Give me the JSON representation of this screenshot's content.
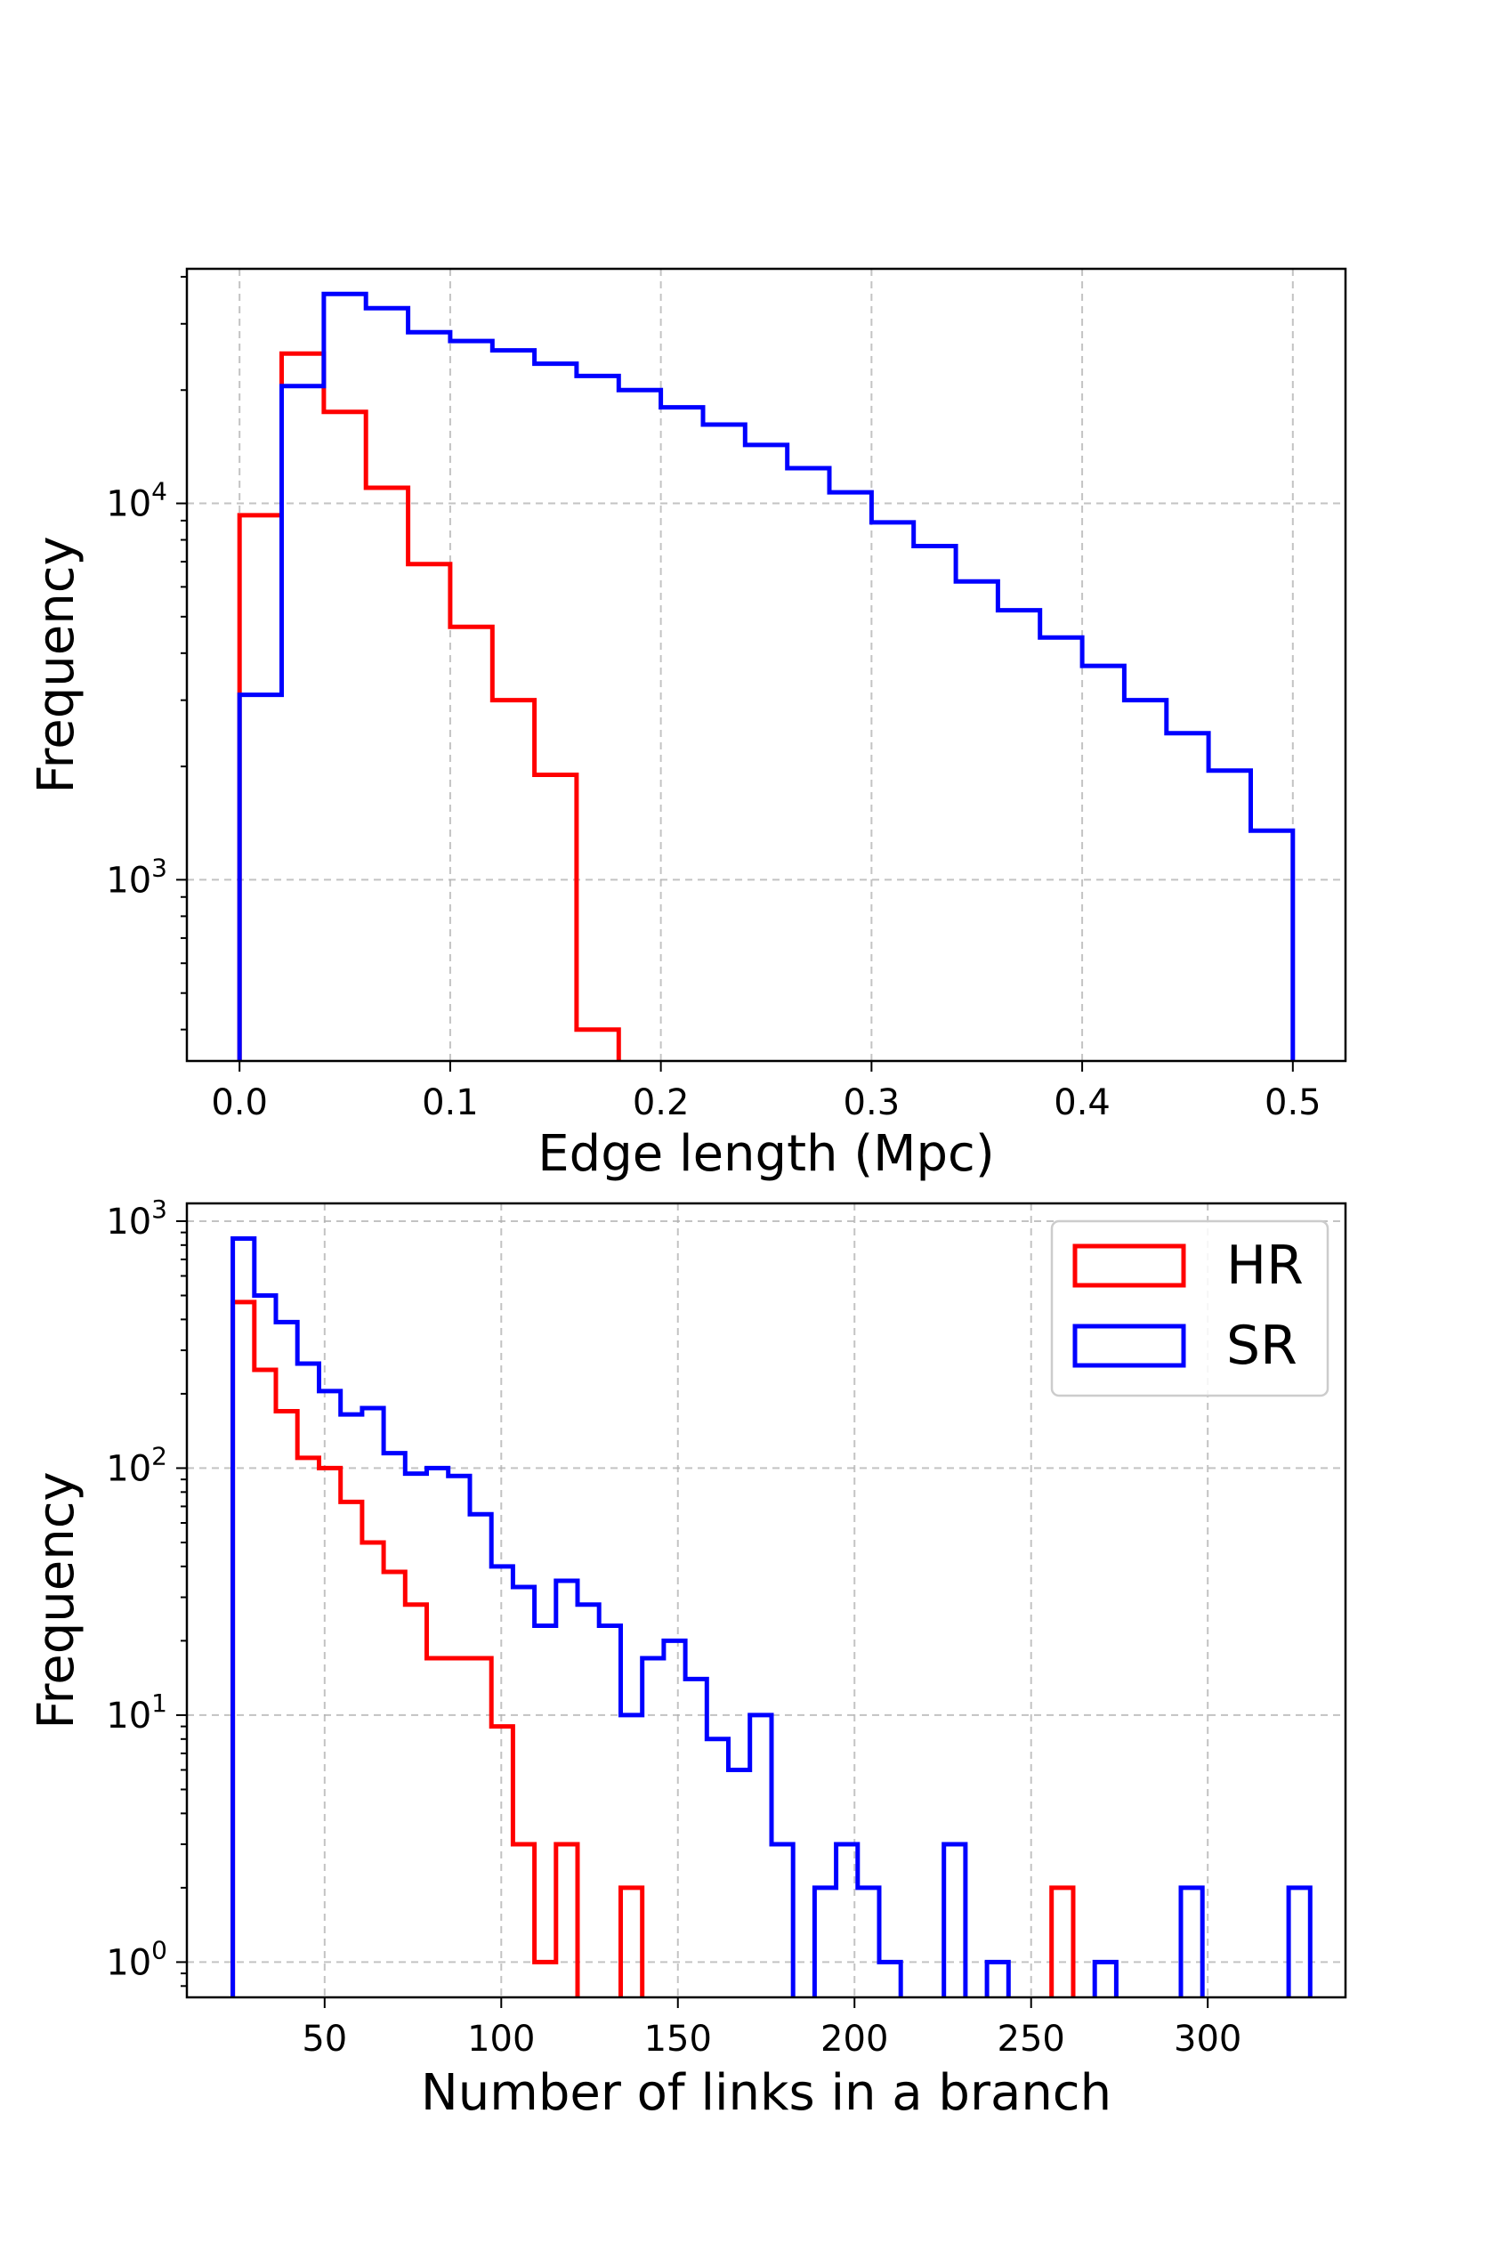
{
  "chart_data": [
    {
      "type": "histogram-step",
      "xlabel": "Edge length (Mpc)",
      "ylabel": "Frequency",
      "yscale": "log",
      "xlim": [
        -0.025,
        0.525
      ],
      "ylim": [
        330,
        42000
      ],
      "x_ticks": [
        0.0,
        0.1,
        0.2,
        0.3,
        0.4,
        0.5
      ],
      "x_tick_labels": [
        "0.0",
        "0.1",
        "0.2",
        "0.3",
        "0.4",
        "0.5"
      ],
      "y_ticks": [
        1000,
        10000
      ],
      "y_tick_labels": [
        {
          "base": "10",
          "exp": "3"
        },
        {
          "base": "10",
          "exp": "4"
        }
      ],
      "legend": null,
      "series": [
        {
          "name": "HR",
          "color": "#ff0000",
          "bin_edges": [
            0,
            0.02,
            0.04,
            0.06,
            0.08,
            0.1,
            0.12,
            0.14,
            0.16,
            0.18
          ],
          "counts": [
            9300,
            25000,
            17500,
            11000,
            6900,
            4700,
            3000,
            1900,
            400
          ]
        },
        {
          "name": "SR",
          "color": "#0000ff",
          "bin_edges": [
            0,
            0.02,
            0.04,
            0.06,
            0.08,
            0.1,
            0.12,
            0.14,
            0.16,
            0.18,
            0.2,
            0.22,
            0.24,
            0.26,
            0.28,
            0.3,
            0.32,
            0.34,
            0.36,
            0.38,
            0.4,
            0.42,
            0.44,
            0.46,
            0.48,
            0.5
          ],
          "counts": [
            3100,
            20500,
            36000,
            33000,
            28500,
            27000,
            25500,
            23500,
            21800,
            20000,
            18000,
            16200,
            14300,
            12400,
            10700,
            8900,
            7700,
            6200,
            5200,
            4400,
            3700,
            3000,
            2450,
            1950,
            1350
          ]
        }
      ]
    },
    {
      "type": "histogram-step",
      "xlabel": "Number of links in a branch",
      "ylabel": "Frequency",
      "yscale": "log",
      "xlim": [
        11,
        339
      ],
      "ylim": [
        0.72,
        1180
      ],
      "x_ticks": [
        50,
        100,
        150,
        200,
        250,
        300
      ],
      "x_tick_labels": [
        "50",
        "100",
        "150",
        "200",
        "250",
        "300"
      ],
      "y_ticks": [
        1,
        10,
        100,
        1000
      ],
      "y_tick_labels": [
        {
          "base": "10",
          "exp": "0"
        },
        {
          "base": "10",
          "exp": "1"
        },
        {
          "base": "10",
          "exp": "2"
        },
        {
          "base": "10",
          "exp": "3"
        }
      ],
      "legend": {
        "placement": "top-right",
        "entries": [
          {
            "label": "HR",
            "color": "#ff0000"
          },
          {
            "label": "SR",
            "color": "#0000ff"
          }
        ]
      },
      "series": [
        {
          "name": "HR",
          "color": "#ff0000",
          "bin_edges": [
            24,
            30.1,
            36.2,
            42.3,
            48.4,
            54.5,
            60.6,
            66.7,
            72.8,
            78.9,
            85.0,
            91.1,
            97.2,
            103.3,
            109.4,
            115.5,
            121.6,
            127.7,
            133.8,
            139.9,
            146.0,
            152.1,
            158.2,
            164.3,
            170.4,
            176.5,
            182.6,
            188.7,
            194.8,
            200.9,
            207.0,
            213.1,
            219.2,
            225.3,
            231.4,
            237.5,
            243.6,
            249.7,
            255.8,
            261.9
          ],
          "counts": [
            470,
            250,
            170,
            110,
            100,
            73,
            50,
            38,
            28,
            17,
            17,
            17,
            9,
            3,
            1,
            3,
            0,
            0,
            2,
            0,
            0,
            0,
            0,
            0,
            0,
            0,
            0,
            0,
            0,
            0,
            0,
            0,
            0,
            0,
            0,
            0,
            0,
            0,
            2
          ]
        },
        {
          "name": "SR",
          "color": "#0000ff",
          "bin_edges": [
            24,
            30.1,
            36.2,
            42.3,
            48.4,
            54.5,
            60.6,
            66.7,
            72.8,
            78.9,
            85.0,
            91.1,
            97.2,
            103.3,
            109.4,
            115.5,
            121.6,
            127.7,
            133.8,
            139.9,
            146.0,
            152.1,
            158.2,
            164.3,
            170.4,
            176.5,
            182.6,
            188.7,
            194.8,
            200.9,
            207.0,
            213.1,
            219.2,
            225.3,
            231.4,
            237.5,
            243.6,
            249.7,
            255.8,
            261.9,
            268.0,
            274.1,
            280.2,
            286.3,
            292.4,
            298.5,
            304.6,
            310.7,
            316.8,
            322.9,
            329.0
          ],
          "counts": [
            850,
            500,
            390,
            265,
            205,
            165,
            175,
            115,
            95,
            100,
            93,
            65,
            40,
            33,
            23,
            35,
            28,
            23,
            10,
            17,
            20,
            14,
            8,
            6,
            10,
            3,
            0,
            2,
            3,
            2,
            1,
            0,
            0,
            3,
            0,
            1,
            0,
            0,
            0,
            0,
            1,
            0,
            0,
            0,
            2,
            0,
            0,
            0,
            0,
            2
          ]
        }
      ]
    }
  ]
}
